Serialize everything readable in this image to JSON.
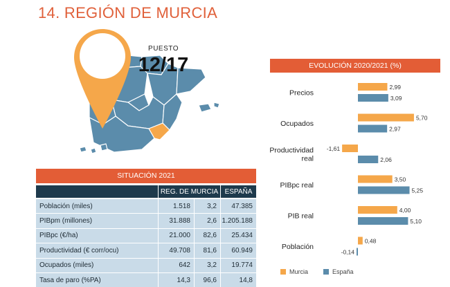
{
  "title": "14. REGIÓN DE MURCIA",
  "map": {
    "pin_label": "PUESTO",
    "pin_value": "12/17"
  },
  "colors": {
    "accent": "#e35d36",
    "murcia": "#f5a74a",
    "espana": "#5b8cab",
    "table_header": "#1e3a4c",
    "table_row": "#c9dbe8",
    "map_region": "#5b8cab",
    "pin": "#f5a74a"
  },
  "table": {
    "title": "SITUACIÓN 2021",
    "col_region": "REG. DE MURCIA",
    "col_spain": "ESPAÑA",
    "rows": [
      {
        "label": "Población (miles)",
        "value": "1.518",
        "index": "3,2",
        "spain": "47.385"
      },
      {
        "label": "PIBpm (millones)",
        "value": "31.888",
        "index": "2,6",
        "spain": "1.205.188"
      },
      {
        "label": "PIBpc (€/ha)",
        "value": "21.000",
        "index": "82,6",
        "spain": "25.434"
      },
      {
        "label": "Productividad (€ corr/ocu)",
        "value": "49.708",
        "index": "81,6",
        "spain": "60.949"
      },
      {
        "label": "Ocupados (miles)",
        "value": "642",
        "index": "3,2",
        "spain": "19.774"
      },
      {
        "label": "Tasa de paro (%PA)",
        "value": "14,3",
        "index": "96,6",
        "spain": "14,8"
      }
    ]
  },
  "chart_data": {
    "type": "bar",
    "orientation": "horizontal",
    "title": "EVOLUCIÓN 2020/2021 (%)",
    "categories": [
      "Precios",
      "Ocupados",
      "Productividad real",
      "PIBpc real",
      "PIB real",
      "Población"
    ],
    "series": [
      {
        "name": "Murcia",
        "values": [
          2.99,
          5.7,
          -1.61,
          3.5,
          4.0,
          0.48
        ],
        "labels": [
          "2,99",
          "5,70",
          "-1,61",
          "3,50",
          "4,00",
          "0,48"
        ]
      },
      {
        "name": "España",
        "values": [
          3.09,
          2.97,
          2.06,
          5.25,
          5.1,
          -0.14
        ],
        "labels": [
          "3,09",
          "2,97",
          "2,06",
          "5,25",
          "5,10",
          "-0,14"
        ]
      }
    ],
    "legend_position": "bottom",
    "grid": false
  }
}
